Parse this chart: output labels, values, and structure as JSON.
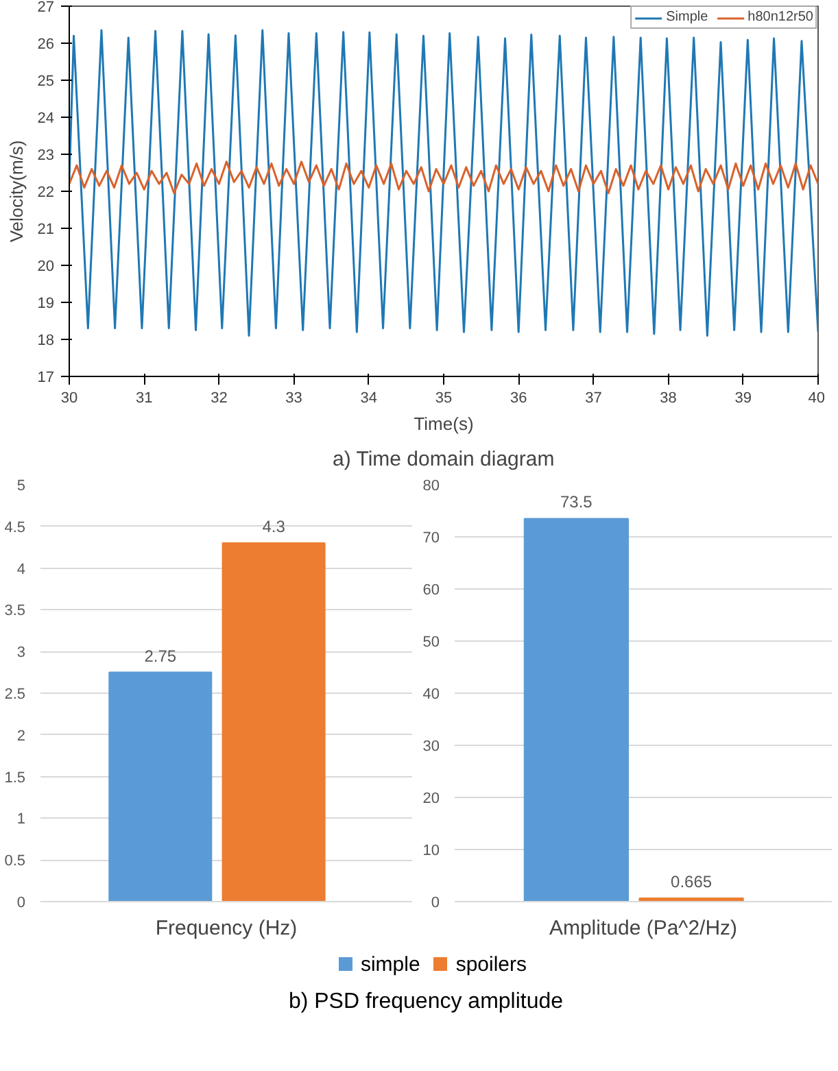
{
  "chart_data": [
    {
      "type": "line",
      "title": "a) Time domain diagram",
      "xlabel": "Time(s)",
      "ylabel": "Velocity(m/s)",
      "xlim": [
        30,
        40
      ],
      "xticks": [
        30,
        31,
        32,
        33,
        34,
        35,
        36,
        37,
        38,
        39,
        40
      ],
      "ylim": [
        17,
        27
      ],
      "yticks": [
        17,
        18,
        19,
        20,
        21,
        22,
        23,
        24,
        25,
        26,
        27
      ],
      "grid": false,
      "legend": "top right",
      "line_style": "solid",
      "marker": "none",
      "series": [
        {
          "name": "Simple",
          "color": "#1f78b4",
          "x": [
            30.0,
            30.06,
            30.25,
            30.43,
            30.61,
            30.79,
            30.97,
            31.15,
            31.33,
            31.51,
            31.69,
            31.86,
            32.04,
            32.22,
            32.4,
            32.58,
            32.76,
            32.93,
            33.12,
            33.3,
            33.48,
            33.66,
            33.84,
            34.01,
            34.19,
            34.37,
            34.55,
            34.73,
            34.91,
            35.08,
            35.27,
            35.46,
            35.64,
            35.82,
            36.0,
            36.17,
            36.36,
            36.55,
            36.73,
            36.9,
            37.09,
            37.27,
            37.45,
            37.63,
            37.81,
            37.98,
            38.16,
            38.34,
            38.52,
            38.7,
            38.88,
            39.06,
            39.24,
            39.41,
            39.6,
            39.78,
            40.0
          ],
          "values": [
            22.3,
            26.2,
            18.3,
            26.35,
            18.3,
            26.15,
            18.3,
            26.33,
            18.3,
            26.33,
            18.25,
            26.24,
            18.3,
            26.21,
            18.1,
            26.35,
            18.3,
            26.27,
            18.25,
            26.27,
            18.3,
            26.3,
            18.2,
            26.29,
            18.3,
            26.24,
            18.3,
            26.2,
            18.25,
            26.27,
            18.2,
            26.17,
            18.25,
            26.13,
            18.2,
            26.23,
            18.25,
            26.2,
            18.25,
            26.15,
            18.2,
            26.17,
            18.2,
            26.15,
            18.15,
            26.13,
            18.25,
            26.15,
            18.1,
            26.03,
            18.25,
            26.09,
            18.2,
            26.13,
            18.2,
            26.06,
            18.2
          ]
        },
        {
          "name": "h80n12r50",
          "color": "#d9622b",
          "x": [
            30.0,
            30.1,
            30.2,
            30.3,
            30.4,
            30.5,
            30.6,
            30.7,
            30.8,
            30.9,
            31.0,
            31.1,
            31.2,
            31.3,
            31.4,
            31.5,
            31.6,
            31.7,
            31.8,
            31.9,
            32.0,
            32.1,
            32.2,
            32.3,
            32.4,
            32.5,
            32.6,
            32.7,
            32.8,
            32.9,
            33.0,
            33.1,
            33.2,
            33.3,
            33.4,
            33.5,
            33.6,
            33.7,
            33.8,
            33.9,
            34.0,
            34.1,
            34.2,
            34.3,
            34.4,
            34.5,
            34.6,
            34.7,
            34.8,
            34.9,
            35.0,
            35.1,
            35.2,
            35.3,
            35.4,
            35.5,
            35.6,
            35.7,
            35.8,
            35.9,
            36.0,
            36.1,
            36.2,
            36.3,
            36.4,
            36.5,
            36.6,
            36.7,
            36.8,
            36.9,
            37.0,
            37.1,
            37.2,
            37.3,
            37.4,
            37.5,
            37.6,
            37.7,
            37.8,
            37.9,
            38.0,
            38.1,
            38.2,
            38.3,
            38.4,
            38.5,
            38.6,
            38.7,
            38.8,
            38.9,
            39.0,
            39.1,
            39.2,
            39.3,
            39.4,
            39.5,
            39.6,
            39.7,
            39.8,
            39.9,
            40.0
          ],
          "values": [
            22.2,
            22.7,
            22.1,
            22.6,
            22.15,
            22.55,
            22.1,
            22.7,
            22.2,
            22.5,
            22.05,
            22.55,
            22.2,
            22.5,
            21.95,
            22.45,
            22.2,
            22.75,
            22.15,
            22.6,
            22.2,
            22.8,
            22.25,
            22.55,
            22.1,
            22.65,
            22.2,
            22.75,
            22.15,
            22.6,
            22.2,
            22.8,
            22.25,
            22.7,
            22.15,
            22.6,
            22.05,
            22.75,
            22.2,
            22.55,
            22.1,
            22.7,
            22.2,
            22.75,
            22.05,
            22.55,
            22.2,
            22.65,
            22.0,
            22.6,
            22.2,
            22.7,
            22.1,
            22.65,
            22.15,
            22.55,
            22.0,
            22.7,
            22.2,
            22.6,
            22.05,
            22.65,
            22.2,
            22.55,
            22.0,
            22.7,
            22.15,
            22.6,
            22.0,
            22.7,
            22.2,
            22.55,
            21.95,
            22.6,
            22.15,
            22.7,
            22.05,
            22.55,
            22.2,
            22.7,
            22.05,
            22.65,
            22.2,
            22.7,
            22.0,
            22.6,
            22.2,
            22.7,
            22.05,
            22.75,
            22.15,
            22.7,
            22.05,
            22.75,
            22.2,
            22.7,
            22.1,
            22.75,
            22.05,
            22.7,
            22.2
          ]
        }
      ]
    },
    {
      "type": "bar",
      "title": "b) PSD frequency amplitude",
      "categories": [
        "Frequency (Hz)"
      ],
      "ylim": [
        0,
        5
      ],
      "yticks": [
        0,
        0.5,
        1,
        1.5,
        2,
        2.5,
        3,
        3.5,
        4,
        4.5,
        5
      ],
      "grid": "y",
      "legend": "bottom",
      "data_labels": true,
      "series": [
        {
          "name": "simple",
          "color": "#5b9bd5",
          "values": [
            2.75
          ]
        },
        {
          "name": "spoilers",
          "color": "#ed7d31",
          "values": [
            4.3
          ]
        }
      ]
    },
    {
      "type": "bar",
      "categories": [
        "Amplitude (Pa^2/Hz)"
      ],
      "ylim": [
        0,
        80
      ],
      "yticks": [
        0,
        10,
        20,
        30,
        40,
        50,
        60,
        70,
        80
      ],
      "grid": "y",
      "legend": "bottom",
      "data_labels": true,
      "series": [
        {
          "name": "simple",
          "color": "#5b9bd5",
          "values": [
            73.5
          ]
        },
        {
          "name": "spoilers",
          "color": "#ed7d31",
          "values": [
            0.665
          ]
        }
      ]
    }
  ]
}
